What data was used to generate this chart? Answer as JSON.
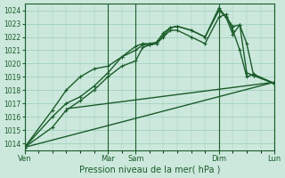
{
  "title": "",
  "xlabel": "Pression niveau de la mer( hPa )",
  "bg_color": "#cce8dc",
  "grid_color": "#99ccbb",
  "line_color": "#1a5c2a",
  "ylim": [
    1013.5,
    1024.5
  ],
  "yticks": [
    1014,
    1015,
    1016,
    1017,
    1018,
    1019,
    1020,
    1021,
    1022,
    1023,
    1024
  ],
  "xlim": [
    0,
    36
  ],
  "xtick_positions": [
    0,
    12,
    16,
    28,
    36
  ],
  "day_labels": [
    "Ven",
    "Mar",
    "Sam",
    "Dim",
    "Lun"
  ],
  "vline_positions": [
    0,
    12,
    16,
    28,
    36
  ],
  "series": [
    [
      0,
      1013.7,
      36,
      1018.6
    ],
    [
      0,
      1013.7,
      4,
      1015.2,
      6,
      1016.5,
      8,
      1017.2,
      10,
      1018.0,
      12,
      1019.0,
      14,
      1019.8,
      16,
      1020.2,
      17,
      1021.2,
      18,
      1021.4,
      19,
      1021.5,
      20,
      1022.0,
      21,
      1022.5,
      22,
      1022.5,
      24,
      1022.0,
      26,
      1021.5,
      28,
      1023.5,
      29,
      1023.7,
      30,
      1022.5,
      31,
      1021.0,
      32,
      1019.0,
      33,
      1019.2,
      36,
      1018.5
    ],
    [
      0,
      1013.7,
      4,
      1016.0,
      6,
      1017.0,
      8,
      1017.5,
      10,
      1018.3,
      12,
      1019.3,
      14,
      1020.5,
      16,
      1021.0,
      17,
      1021.4,
      18,
      1021.4,
      19,
      1021.5,
      20,
      1022.1,
      21,
      1022.7,
      22,
      1022.8,
      24,
      1022.5,
      26,
      1022.0,
      28,
      1024.0,
      29,
      1023.5,
      30,
      1022.2,
      31,
      1022.9,
      32,
      1021.5,
      33,
      1019.1,
      36,
      1018.5
    ],
    [
      0,
      1013.7,
      4,
      1016.5,
      6,
      1018.0,
      8,
      1019.0,
      10,
      1019.6,
      12,
      1019.8,
      14,
      1020.5,
      16,
      1021.3,
      17,
      1021.5,
      18,
      1021.5,
      19,
      1021.6,
      20,
      1022.3,
      21,
      1022.7,
      22,
      1022.8,
      24,
      1022.5,
      26,
      1022.0,
      28,
      1024.2,
      29,
      1023.5,
      30,
      1022.8,
      31,
      1022.9,
      32,
      1019.3,
      33,
      1019.1,
      36,
      1018.5
    ]
  ],
  "flat_series_x": [
    6,
    36
  ],
  "flat_series_y": [
    1016.6,
    1018.6
  ],
  "marker": "+",
  "marker_size": 3.5,
  "line_width": 1.0
}
